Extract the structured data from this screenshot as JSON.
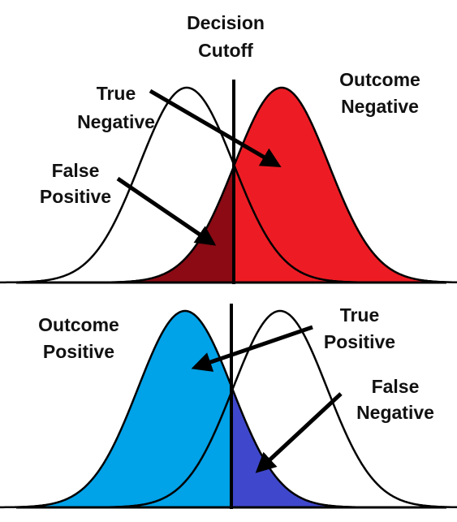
{
  "labels": {
    "decision_cutoff": [
      "Decision",
      "Cutoff"
    ],
    "true_negative": [
      "True",
      "Negative"
    ],
    "outcome_negative": [
      "Outcome",
      "Negative"
    ],
    "false_positive": [
      "False",
      "Positive"
    ],
    "outcome_positive": [
      "Outcome",
      "Positive"
    ],
    "true_positive": [
      "True",
      "Positive"
    ],
    "false_negative": [
      "False",
      "Negative"
    ]
  }
}
